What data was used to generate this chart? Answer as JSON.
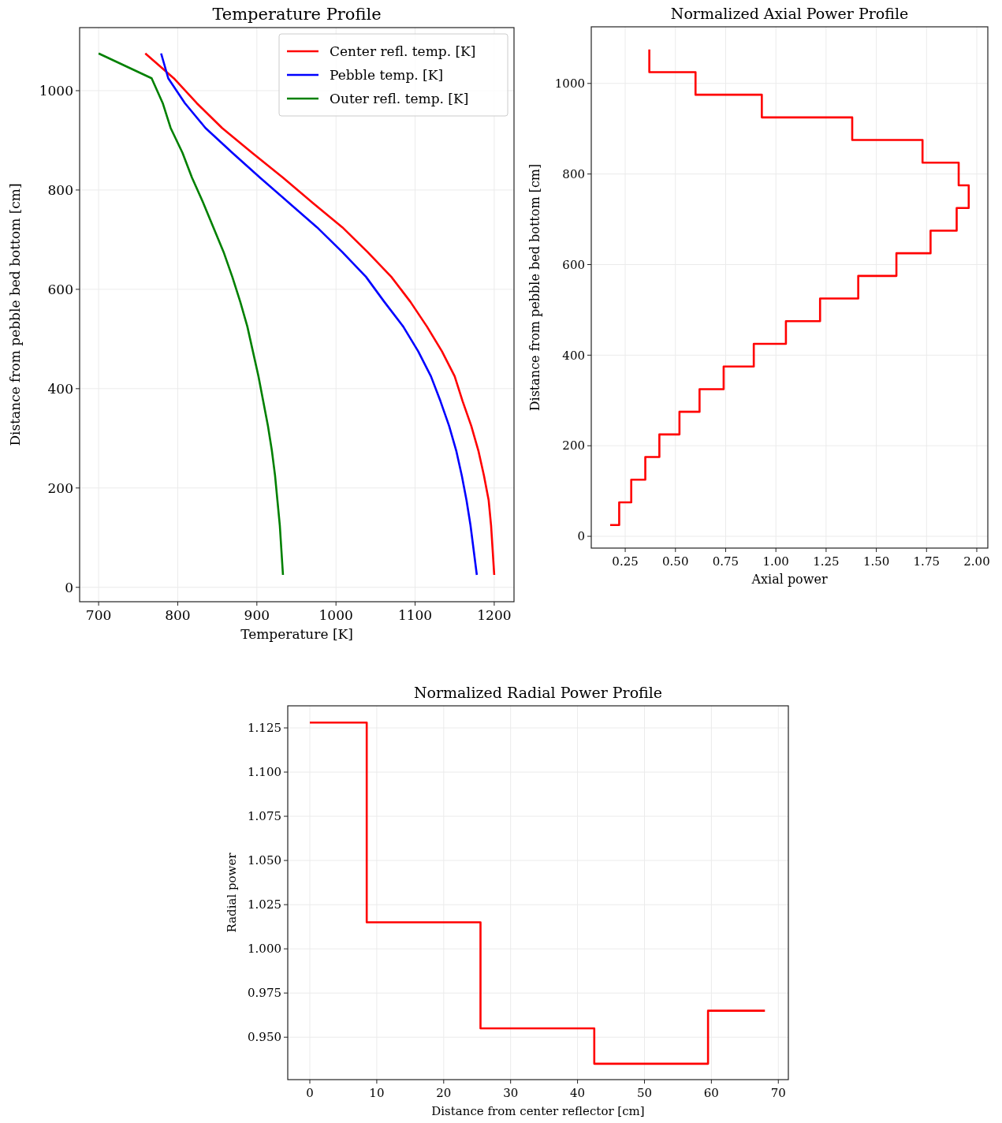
{
  "chart_data": [
    {
      "type": "line",
      "title": "Temperature Profile",
      "xlabel": "Temperature [K]",
      "ylabel": "Distance from pebble bed bottom [cm]",
      "orientation": "horizontal",
      "x": [
        1075,
        1025,
        975,
        925,
        875,
        825,
        775,
        725,
        675,
        625,
        575,
        525,
        475,
        425,
        375,
        325,
        275,
        225,
        175,
        125,
        75,
        25
      ],
      "series": [
        {
          "name": "Center refl. temp. [K]",
          "color": "#ff0000",
          "values": [
            759,
            795,
            824,
            856,
            894,
            933,
            970,
            1008,
            1040,
            1070,
            1094,
            1115,
            1134,
            1150,
            1160,
            1171,
            1180,
            1187,
            1193,
            1196,
            1198,
            1200
          ]
        },
        {
          "name": "Pebble temp. [K]",
          "color": "#0000ff",
          "values": [
            779,
            788,
            809,
            835,
            869,
            904,
            940,
            976,
            1008,
            1038,
            1061,
            1085,
            1104,
            1120,
            1132,
            1143,
            1152,
            1159,
            1165,
            1170,
            1174,
            1178
          ]
        },
        {
          "name": "Outer refl. temp. [K]",
          "color": "#008000",
          "values": [
            700,
            767,
            781,
            791,
            806,
            818,
            832,
            845,
            858,
            869,
            879,
            888,
            895,
            902,
            908,
            914,
            919,
            923,
            926,
            929,
            931,
            933
          ]
        }
      ],
      "xlim": [
        676,
        1225
      ],
      "xticks": [
        700,
        800,
        900,
        1000,
        1100,
        1200
      ],
      "ylim": [
        -29,
        1127
      ],
      "yticks": [
        0,
        200,
        400,
        600,
        800,
        1000
      ],
      "grid": true,
      "legend": "top right"
    },
    {
      "type": "step",
      "title": "Normalized Axial Power Profile",
      "xlabel": "Axial power",
      "ylabel": "Distance from pebble bed bottom [cm]",
      "orientation": "horizontal",
      "x": [
        25,
        75,
        125,
        175,
        225,
        275,
        325,
        375,
        425,
        475,
        525,
        575,
        625,
        675,
        725,
        775,
        825,
        875,
        925,
        975,
        1025,
        1075
      ],
      "series": [
        {
          "color": "#ff0000",
          "values": [
            0.175,
            0.22,
            0.28,
            0.35,
            0.42,
            0.52,
            0.62,
            0.74,
            0.89,
            1.05,
            1.22,
            1.41,
            1.6,
            1.77,
            1.9,
            1.96,
            1.91,
            1.73,
            1.38,
            0.93,
            0.6,
            0.37
          ]
        }
      ],
      "xlim": [
        0.081,
        2.055
      ],
      "xticks": [
        0.25,
        {
          "value": 0.5,
          "label": "0.50"
        },
        0.75,
        {
          "value": 1,
          "label": "1.00"
        },
        1.25,
        {
          "value": 1.5,
          "label": "1.50"
        },
        1.75,
        {
          "value": 2,
          "label": "2.00"
        }
      ],
      "ylim": [
        -26,
        1125
      ],
      "yticks": [
        0,
        200,
        400,
        600,
        800,
        1000
      ],
      "grid": true
    },
    {
      "type": "step",
      "title": "Normalized Radial Power Profile",
      "xlabel": "Distance from center reflector [cm]",
      "ylabel": "Radial power",
      "x": [
        0,
        8.5,
        25.5,
        42.5,
        59.5,
        68
      ],
      "series": [
        {
          "color": "#ff0000",
          "values": [
            1.128,
            1.015,
            0.955,
            0.935,
            0.965,
            0.965
          ]
        }
      ],
      "xlim": [
        -3.3,
        71.5
      ],
      "xticks": [
        0,
        10,
        20,
        30,
        40,
        50,
        60,
        70
      ],
      "ylim": [
        0.926,
        1.1375
      ],
      "yticks": [
        {
          "value": 0.95,
          "label": "0.950"
        },
        0.975,
        {
          "value": 1,
          "label": "1.000"
        },
        1.025,
        {
          "value": 1.05,
          "label": "1.050"
        },
        1.075,
        {
          "value": 1.1,
          "label": "1.100"
        },
        1.125
      ],
      "grid": true
    }
  ]
}
